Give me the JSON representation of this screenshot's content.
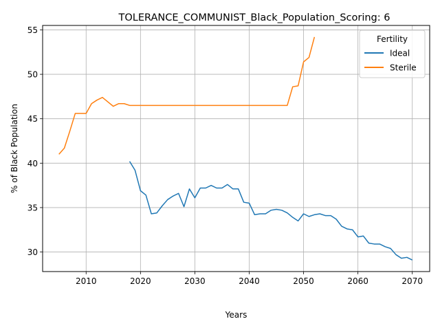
{
  "chart_data": {
    "type": "line",
    "title": "TOLERANCE_COMMUNIST_Black_Population_Scoring: 6",
    "xlabel": "Years",
    "ylabel": "% of Black Population",
    "xlim": [
      2002,
      2073.2
    ],
    "ylim": [
      27.8,
      55.5
    ],
    "xticks": [
      2010,
      2020,
      2030,
      2040,
      2050,
      2060,
      2070
    ],
    "yticks": [
      30,
      35,
      40,
      45,
      50,
      55
    ],
    "grid": true,
    "legend": {
      "title": "Fertility",
      "placement": "top-right"
    },
    "series": [
      {
        "name": "Ideal",
        "color": "#1f77b4",
        "x": [
          2018,
          2019,
          2020,
          2021,
          2022,
          2023,
          2024,
          2025,
          2026,
          2027,
          2028,
          2029,
          2030,
          2031,
          2032,
          2033,
          2034,
          2035,
          2036,
          2037,
          2038,
          2039,
          2040,
          2041,
          2042,
          2043,
          2044,
          2045,
          2046,
          2047,
          2048,
          2049,
          2050,
          2051,
          2052,
          2053,
          2054,
          2055,
          2056,
          2057,
          2058,
          2059,
          2060,
          2061,
          2062,
          2063,
          2064,
          2065,
          2066,
          2067,
          2068,
          2069,
          2070
        ],
        "y": [
          40.2,
          39.2,
          36.9,
          36.4,
          34.3,
          34.4,
          35.2,
          35.9,
          36.3,
          36.6,
          35.1,
          37.1,
          36.1,
          37.2,
          37.2,
          37.5,
          37.2,
          37.2,
          37.6,
          37.1,
          37.1,
          35.6,
          35.5,
          34.2,
          34.3,
          34.3,
          34.7,
          34.8,
          34.7,
          34.4,
          33.9,
          33.5,
          34.3,
          34.0,
          34.2,
          34.3,
          34.1,
          34.1,
          33.7,
          32.9,
          32.6,
          32.5,
          31.7,
          31.8,
          31.0,
          30.9,
          30.9,
          30.6,
          30.4,
          29.7,
          29.3,
          29.4,
          29.1
        ]
      },
      {
        "name": "Sterile",
        "color": "#ff7f0e",
        "x": [
          2005,
          2006,
          2007,
          2008,
          2009,
          2010,
          2011,
          2012,
          2013,
          2014,
          2015,
          2016,
          2017,
          2018,
          2019,
          2020,
          2021,
          2022,
          2023,
          2024,
          2025,
          2026,
          2027,
          2028,
          2029,
          2030,
          2031,
          2032,
          2033,
          2034,
          2035,
          2036,
          2037,
          2038,
          2039,
          2040,
          2041,
          2042,
          2043,
          2044,
          2045,
          2046,
          2047,
          2048,
          2049,
          2050,
          2051,
          2052
        ],
        "y": [
          41.0,
          41.7,
          43.6,
          45.6,
          45.6,
          45.6,
          46.7,
          47.1,
          47.4,
          46.9,
          46.4,
          46.7,
          46.7,
          46.5,
          46.5,
          46.5,
          46.5,
          46.5,
          46.5,
          46.5,
          46.5,
          46.5,
          46.5,
          46.5,
          46.5,
          46.5,
          46.5,
          46.5,
          46.5,
          46.5,
          46.5,
          46.5,
          46.5,
          46.5,
          46.5,
          46.5,
          46.5,
          46.5,
          46.5,
          46.5,
          46.5,
          46.5,
          46.5,
          48.6,
          48.7,
          51.4,
          51.9,
          54.2
        ]
      }
    ]
  }
}
